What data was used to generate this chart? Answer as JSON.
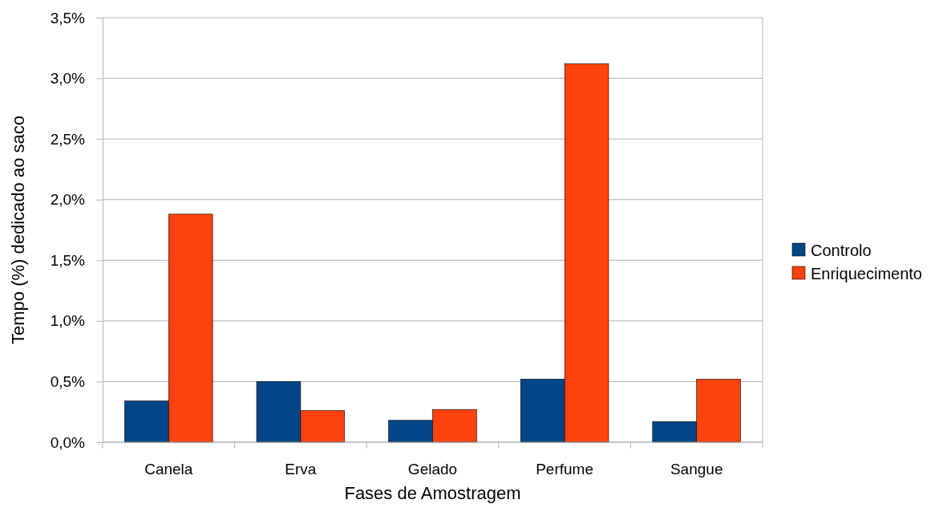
{
  "chart_data": {
    "type": "bar",
    "xlabel": "Fases de Amostragem",
    "ylabel": "Tempo (%) dedicado ao saco",
    "categories": [
      "Canela",
      "Erva",
      "Gelado",
      "Perfume",
      "Sangue"
    ],
    "series": [
      {
        "name": "Controlo",
        "color": "#004586",
        "values": [
          0.34,
          0.5,
          0.18,
          0.52,
          0.17
        ]
      },
      {
        "name": "Enriquecimento",
        "color": "#ff420e",
        "values": [
          1.88,
          0.26,
          0.27,
          3.12,
          0.52
        ]
      }
    ],
    "ylim": [
      0,
      3.5
    ],
    "yticks": [
      {
        "value": 0,
        "label": "0,0%"
      },
      {
        "value": 0.5,
        "label": "0,5%"
      },
      {
        "value": 1,
        "label": "1,0%"
      },
      {
        "value": 1.5,
        "label": "1,5%"
      },
      {
        "value": 2,
        "label": "2,0%"
      },
      {
        "value": 2.5,
        "label": "2,5%"
      },
      {
        "value": 3,
        "label": "3,0%"
      },
      {
        "value": 3.5,
        "label": "3,5%"
      }
    ],
    "grid": "y",
    "legend": "right"
  }
}
